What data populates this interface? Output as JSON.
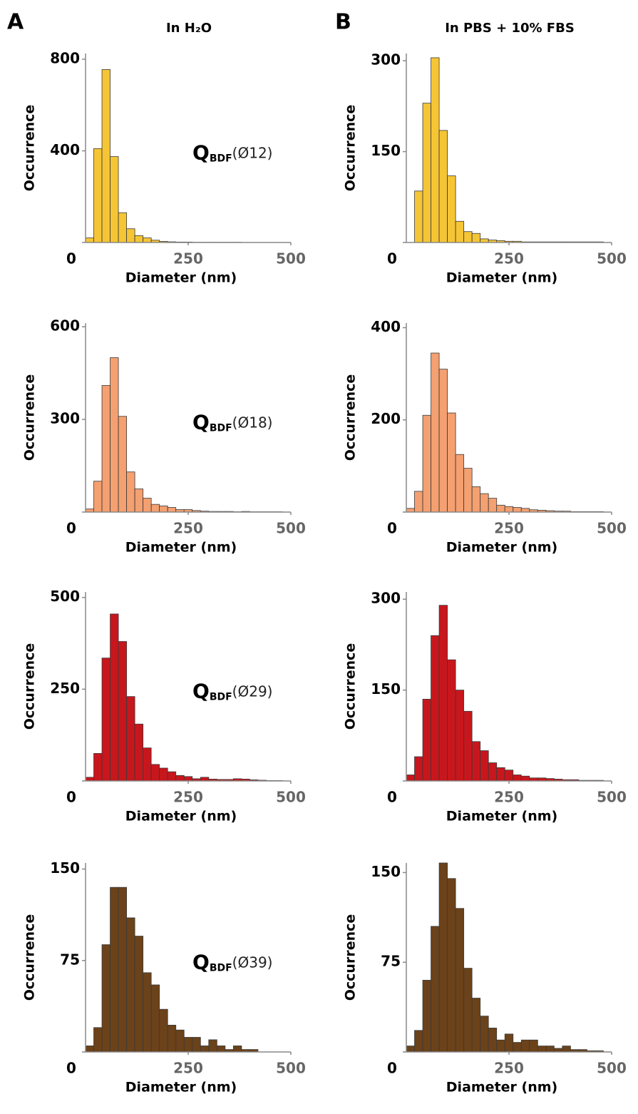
{
  "panels": [
    {
      "label": "A",
      "title": "In H₂O"
    },
    {
      "label": "B",
      "title": "In PBS + 10% FBS"
    }
  ],
  "chart_data": [
    {
      "type": "histogram",
      "xlabel": "Diameter (nm)",
      "ylabel": "Occurrence",
      "color": "#f5c535",
      "annotation": {
        "text": "Q",
        "subscript": "BDF",
        "suffix": "(Ø12)"
      },
      "bins": [
        0,
        20,
        40,
        60,
        80,
        100,
        120,
        140,
        160,
        180,
        200,
        220,
        240,
        260,
        280,
        300,
        320,
        340,
        360,
        380,
        400,
        420,
        440,
        460,
        480,
        500
      ],
      "counts": [
        20,
        410,
        755,
        375,
        130,
        60,
        30,
        20,
        10,
        5,
        3,
        2,
        2,
        1,
        1,
        1,
        1,
        1,
        1,
        0,
        0,
        0,
        0,
        0,
        0
      ],
      "xlim": [
        0,
        500
      ],
      "xticks": [
        250,
        500
      ],
      "ylim": [
        0,
        825
      ],
      "yticks": [
        0,
        400,
        800
      ]
    },
    {
      "type": "histogram",
      "xlabel": "Diameter (nm)",
      "ylabel": "Occurrence",
      "color": "#f5c535",
      "bins": [
        0,
        20,
        40,
        60,
        80,
        100,
        120,
        140,
        160,
        180,
        200,
        220,
        240,
        260,
        280,
        300,
        320,
        340,
        360,
        380,
        400,
        420,
        440,
        460,
        480,
        500
      ],
      "counts": [
        0,
        85,
        230,
        305,
        185,
        110,
        35,
        18,
        15,
        6,
        4,
        3,
        2,
        2,
        1,
        1,
        1,
        1,
        1,
        1,
        1,
        1,
        1,
        1,
        0
      ],
      "xlim": [
        0,
        500
      ],
      "xticks": [
        250,
        500
      ],
      "ylim": [
        0,
        312
      ],
      "yticks": [
        0,
        150,
        300
      ]
    },
    {
      "type": "histogram",
      "xlabel": "Diameter (nm)",
      "ylabel": "Occurrence",
      "color": "#f4a070",
      "annotation": {
        "text": "Q",
        "subscript": "BDF",
        "suffix": "(Ø18)"
      },
      "bins": [
        0,
        20,
        40,
        60,
        80,
        100,
        120,
        140,
        160,
        180,
        200,
        220,
        240,
        260,
        280,
        300,
        320,
        340,
        360,
        380,
        400,
        420,
        440,
        460,
        480,
        500
      ],
      "counts": [
        10,
        100,
        410,
        500,
        310,
        130,
        75,
        45,
        25,
        20,
        15,
        8,
        8,
        5,
        3,
        2,
        2,
        2,
        1,
        2,
        1,
        1,
        1,
        1,
        0
      ],
      "xlim": [
        0,
        500
      ],
      "xticks": [
        250,
        500
      ],
      "ylim": [
        0,
        612
      ],
      "yticks": [
        0,
        300,
        600
      ]
    },
    {
      "type": "histogram",
      "xlabel": "Diameter (nm)",
      "ylabel": "Occurrence",
      "color": "#f4a070",
      "bins": [
        0,
        20,
        40,
        60,
        80,
        100,
        120,
        140,
        160,
        180,
        200,
        220,
        240,
        260,
        280,
        300,
        320,
        340,
        360,
        380,
        400,
        420,
        440,
        460,
        480,
        500
      ],
      "counts": [
        8,
        45,
        210,
        345,
        310,
        215,
        125,
        95,
        55,
        40,
        30,
        15,
        12,
        10,
        8,
        5,
        4,
        3,
        2,
        2,
        1,
        1,
        1,
        1,
        0
      ],
      "xlim": [
        0,
        500
      ],
      "xticks": [
        250,
        500
      ],
      "ylim": [
        0,
        410
      ],
      "yticks": [
        0,
        200,
        400
      ]
    },
    {
      "type": "histogram",
      "xlabel": "Diameter (nm)",
      "ylabel": "Occurrence",
      "color": "#c8161d",
      "annotation": {
        "text": "Q",
        "subscript": "BDF",
        "suffix": "(Ø29)"
      },
      "bins": [
        0,
        20,
        40,
        60,
        80,
        100,
        120,
        140,
        160,
        180,
        200,
        220,
        240,
        260,
        280,
        300,
        320,
        340,
        360,
        380,
        400,
        420,
        440,
        460,
        480,
        500
      ],
      "counts": [
        10,
        75,
        335,
        455,
        380,
        230,
        155,
        90,
        45,
        35,
        25,
        15,
        12,
        6,
        10,
        5,
        4,
        4,
        6,
        5,
        3,
        2,
        1,
        1,
        0
      ],
      "xlim": [
        0,
        500
      ],
      "xticks": [
        250,
        500
      ],
      "ylim": [
        0,
        515
      ],
      "yticks": [
        0,
        250,
        500
      ]
    },
    {
      "type": "histogram",
      "xlabel": "Diameter (nm)",
      "ylabel": "Occurrence",
      "color": "#c8161d",
      "bins": [
        0,
        20,
        40,
        60,
        80,
        100,
        120,
        140,
        160,
        180,
        200,
        220,
        240,
        260,
        280,
        300,
        320,
        340,
        360,
        380,
        400,
        420,
        440,
        460,
        480,
        500
      ],
      "counts": [
        10,
        40,
        135,
        240,
        290,
        200,
        150,
        115,
        65,
        50,
        30,
        22,
        18,
        10,
        8,
        5,
        5,
        4,
        3,
        2,
        2,
        1,
        1,
        1,
        0
      ],
      "xlim": [
        0,
        500
      ],
      "xticks": [
        250,
        500
      ],
      "ylim": [
        0,
        312
      ],
      "yticks": [
        0,
        150,
        300
      ]
    },
    {
      "type": "histogram",
      "xlabel": "Diameter (nm)",
      "ylabel": "Occurrence",
      "color": "#6b4219",
      "annotation": {
        "text": "Q",
        "subscript": "BDF",
        "suffix": "(Ø39)"
      },
      "bins": [
        0,
        20,
        40,
        60,
        80,
        100,
        120,
        140,
        160,
        180,
        200,
        220,
        240,
        260,
        280,
        300,
        320,
        340,
        360,
        380,
        400,
        420,
        440,
        460,
        480,
        500
      ],
      "counts": [
        5,
        20,
        88,
        135,
        135,
        110,
        95,
        65,
        55,
        35,
        22,
        18,
        12,
        12,
        5,
        10,
        5,
        2,
        5,
        2,
        2,
        0,
        0,
        0,
        0
      ],
      "xlim": [
        0,
        500
      ],
      "xticks": [
        250,
        500
      ],
      "ylim": [
        0,
        155
      ],
      "yticks": [
        0,
        75,
        150
      ]
    },
    {
      "type": "histogram",
      "xlabel": "Diameter (nm)",
      "ylabel": "Occurrence",
      "color": "#6b4219",
      "bins": [
        0,
        20,
        40,
        60,
        80,
        100,
        120,
        140,
        160,
        180,
        200,
        220,
        240,
        260,
        280,
        300,
        320,
        340,
        360,
        380,
        400,
        420,
        440,
        460,
        480,
        500
      ],
      "counts": [
        5,
        18,
        60,
        105,
        158,
        145,
        120,
        70,
        45,
        30,
        20,
        10,
        15,
        8,
        10,
        10,
        5,
        5,
        3,
        5,
        2,
        2,
        1,
        1,
        0
      ],
      "xlim": [
        0,
        500
      ],
      "xticks": [
        250,
        500
      ],
      "ylim": [
        0,
        158
      ],
      "yticks": [
        0,
        75,
        150
      ]
    }
  ]
}
